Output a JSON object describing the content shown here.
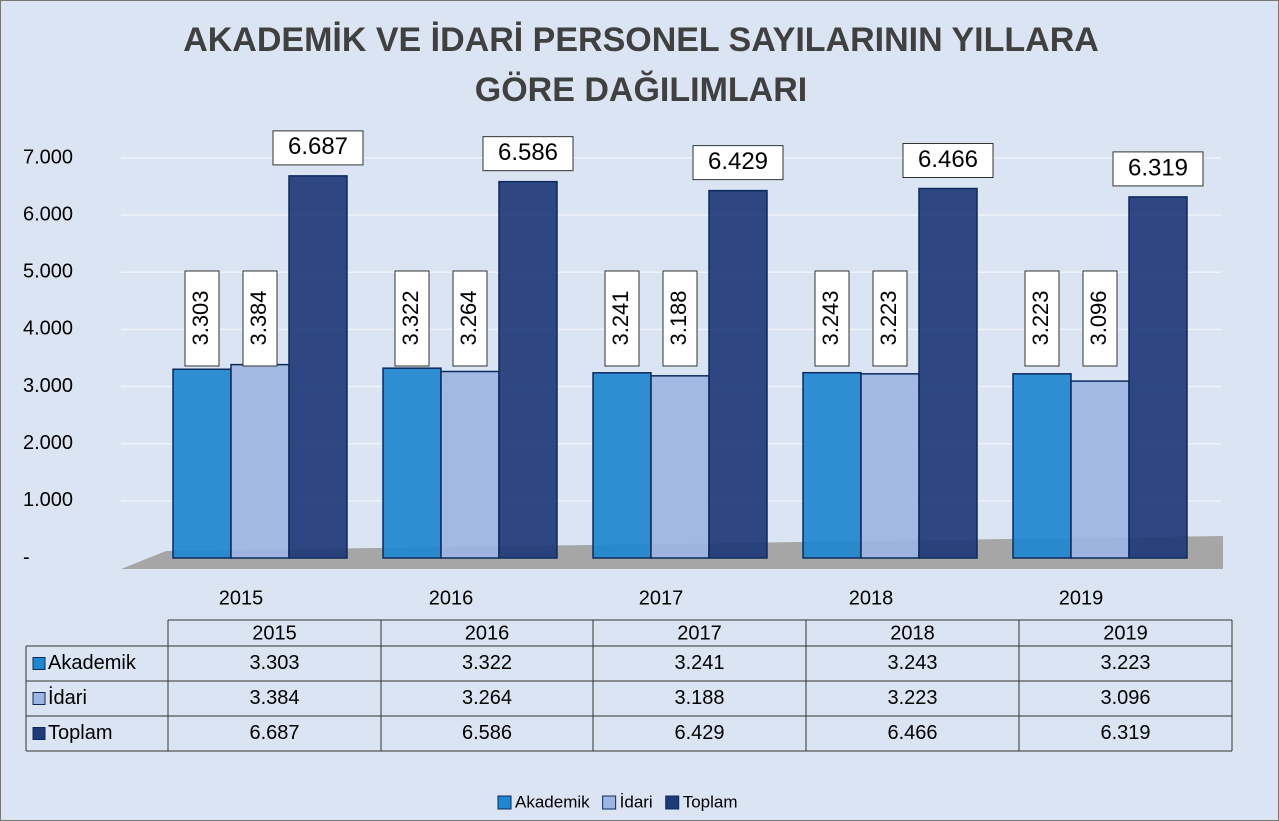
{
  "chart_data": {
    "type": "bar",
    "title": "AKADEMİK VE İDARİ PERSONEL SAYILARININ YILLARA GÖRE DAĞILIMLARI",
    "categories": [
      "2015",
      "2016",
      "2017",
      "2018",
      "2019"
    ],
    "series": [
      {
        "name": "Akademik",
        "color": "#1f86d0",
        "values": [
          3303,
          3322,
          3241,
          3243,
          3223
        ],
        "value_labels": [
          "3.303",
          "3.322",
          "3.241",
          "3.243",
          "3.223"
        ]
      },
      {
        "name": "İdari",
        "color": "#9db5e3",
        "values": [
          3384,
          3264,
          3188,
          3223,
          3096
        ],
        "value_labels": [
          "3.384",
          "3.264",
          "3.188",
          "3.223",
          "3.096"
        ]
      },
      {
        "name": "Toplam",
        "color": "#1f3a78",
        "values": [
          6687,
          6586,
          6429,
          6466,
          6319
        ],
        "value_labels": [
          "6.687",
          "6.586",
          "6.429",
          "6.466",
          "6.319"
        ]
      }
    ],
    "ylim": [
      0,
      7000
    ],
    "yticks": [
      {
        "value": 0,
        "label": "-"
      },
      {
        "value": 1000,
        "label": "1.000"
      },
      {
        "value": 2000,
        "label": "2.000"
      },
      {
        "value": 3000,
        "label": "3.000"
      },
      {
        "value": 4000,
        "label": "4.000"
      },
      {
        "value": 5000,
        "label": "5.000"
      },
      {
        "value": 6000,
        "label": "6.000"
      },
      {
        "value": 7000,
        "label": "7.000"
      }
    ],
    "grid": true,
    "legend": "bottom"
  }
}
